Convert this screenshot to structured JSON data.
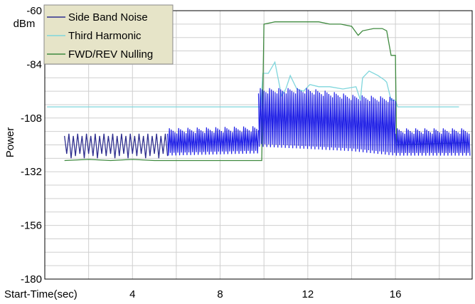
{
  "chart_data": {
    "type": "line",
    "title": "",
    "xlabel": "Start-Time(sec)",
    "ylabel": "Power",
    "yunit": "dBm",
    "xlim": [
      0,
      19.5
    ],
    "ylim": [
      -180,
      -60
    ],
    "x_ticks": [
      4,
      8,
      12,
      16
    ],
    "y_ticks": [
      -60,
      -84,
      -108,
      -132,
      -156,
      -180
    ],
    "grid": true,
    "legend_position": "top-left",
    "series": [
      {
        "name": "Side Band Noise",
        "color": "#2f2f8f",
        "points": [
          [
            0.9,
            -116
          ],
          [
            1.0,
            -124
          ],
          [
            1.1,
            -115
          ],
          [
            1.2,
            -126
          ],
          [
            1.3,
            -116
          ],
          [
            1.4,
            -125
          ],
          [
            1.5,
            -115
          ],
          [
            1.6,
            -124
          ],
          [
            1.7,
            -116
          ],
          [
            1.8,
            -126
          ],
          [
            1.9,
            -115
          ],
          [
            2.0,
            -124
          ],
          [
            2.1,
            -116
          ],
          [
            2.2,
            -125
          ],
          [
            2.3,
            -115
          ],
          [
            2.4,
            -126
          ],
          [
            2.5,
            -116
          ],
          [
            2.6,
            -124
          ],
          [
            2.7,
            -115
          ],
          [
            2.8,
            -125
          ],
          [
            2.9,
            -116
          ],
          [
            3.0,
            -124
          ],
          [
            3.1,
            -115
          ],
          [
            3.2,
            -126
          ],
          [
            3.3,
            -116
          ],
          [
            3.4,
            -125
          ],
          [
            3.5,
            -115
          ],
          [
            3.6,
            -124
          ],
          [
            3.7,
            -116
          ],
          [
            3.8,
            -126
          ],
          [
            3.9,
            -115
          ],
          [
            4.0,
            -124
          ],
          [
            4.1,
            -116
          ],
          [
            4.2,
            -125
          ],
          [
            4.3,
            -115
          ],
          [
            4.4,
            -124
          ],
          [
            4.5,
            -116
          ],
          [
            4.6,
            -126
          ],
          [
            4.7,
            -115
          ],
          [
            4.8,
            -125
          ],
          [
            4.9,
            -116
          ],
          [
            5.0,
            -124
          ],
          [
            5.1,
            -115
          ],
          [
            5.2,
            -126
          ],
          [
            5.3,
            -116
          ],
          [
            5.4,
            -124
          ],
          [
            5.5,
            -115
          ],
          [
            5.6,
            -125
          ]
        ]
      },
      {
        "name": "Third Harmonic",
        "color": "#7fd6dc",
        "points": [
          [
            0.1,
            -103
          ],
          [
            9.7,
            -103
          ],
          [
            9.85,
            -103
          ],
          [
            9.95,
            -88
          ],
          [
            10.2,
            -88
          ],
          [
            10.5,
            -83
          ],
          [
            10.8,
            -98
          ],
          [
            11.0,
            -95
          ],
          [
            11.2,
            -89
          ],
          [
            11.5,
            -95
          ],
          [
            11.8,
            -96
          ],
          [
            12.1,
            -93
          ],
          [
            12.5,
            -94
          ],
          [
            13.0,
            -94
          ],
          [
            13.6,
            -95
          ],
          [
            14.2,
            -94
          ],
          [
            14.4,
            -100
          ],
          [
            14.5,
            -90
          ],
          [
            14.8,
            -87
          ],
          [
            15.2,
            -89
          ],
          [
            15.5,
            -91
          ],
          [
            15.6,
            -92
          ],
          [
            15.8,
            -100
          ],
          [
            16.0,
            -100
          ],
          [
            16.1,
            -103
          ],
          [
            18.9,
            -103
          ]
        ]
      },
      {
        "name": "FWD/REV Nulling",
        "color": "#3f8a3f",
        "points": [
          [
            0.9,
            -127
          ],
          [
            2.0,
            -126.5
          ],
          [
            3.0,
            -127
          ],
          [
            4.0,
            -126.5
          ],
          [
            5.0,
            -127
          ],
          [
            6.0,
            -127
          ],
          [
            7.0,
            -127
          ],
          [
            8.0,
            -127
          ],
          [
            9.0,
            -127
          ],
          [
            9.7,
            -127
          ],
          [
            9.9,
            -127
          ],
          [
            10.0,
            -66
          ],
          [
            10.5,
            -65
          ],
          [
            11.0,
            -65
          ],
          [
            11.5,
            -65
          ],
          [
            12.0,
            -65
          ],
          [
            12.5,
            -65
          ],
          [
            13.0,
            -66
          ],
          [
            13.5,
            -66
          ],
          [
            14.0,
            -67
          ],
          [
            14.3,
            -71
          ],
          [
            14.5,
            -69
          ],
          [
            15.0,
            -68
          ],
          [
            15.4,
            -68
          ],
          [
            15.6,
            -69
          ],
          [
            15.8,
            -80
          ],
          [
            16.0,
            -80
          ],
          [
            16.05,
            -120
          ],
          [
            19.3,
            -119
          ]
        ]
      },
      {
        "name": "",
        "color": "#1f1fe6",
        "band": true,
        "segments": [
          {
            "x": [
              5.6,
              9.75
            ],
            "top": [
              -115,
              -114
            ],
            "bottom": [
              -123,
              -122
            ]
          },
          {
            "x": [
              9.75,
              12.0,
              14.0,
              16.0
            ],
            "top": [
              -97,
              -97,
              -100,
              -101
            ],
            "bottom": [
              -119,
              -120,
              -121,
              -123
            ]
          },
          {
            "x": [
              16.0,
              19.4
            ],
            "top": [
              -115,
              -115
            ],
            "bottom": [
              -123,
              -123
            ]
          }
        ]
      }
    ]
  }
}
